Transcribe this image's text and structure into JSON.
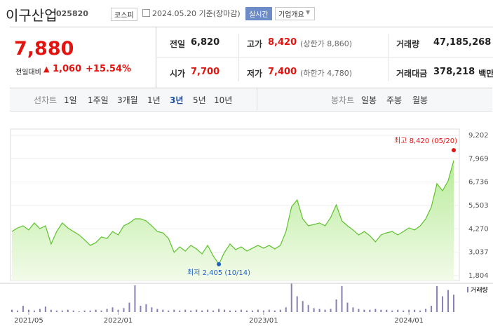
{
  "header": {
    "name": "이구산업",
    "code": "025820",
    "market": "코스피",
    "date": "2024.05.20 기준(장마감)",
    "realtime": "실시간",
    "company": "기업개요"
  },
  "quote": {
    "price": "7,880",
    "change_label": "전일대비",
    "change": "1,060",
    "rate": "+15.54%"
  },
  "stats": [
    {
      "label": "전일",
      "value": "6,820"
    },
    {
      "label": "고가",
      "value": "8,420",
      "note": "(상한가 8,860)"
    },
    {
      "label": "거래량",
      "value": "47,185,268"
    },
    {
      "label": "시가",
      "value": "7,700"
    },
    {
      "label": "저가",
      "value": "7,400",
      "note": "(하한가 4,780)"
    },
    {
      "label": "거래대금",
      "value": "378,218",
      "unit": "백만"
    }
  ],
  "tabs": {
    "line_label": "선차트",
    "line_tabs": [
      "1일",
      "1주일",
      "3개월",
      "1년",
      "3년",
      "5년",
      "10년"
    ],
    "selected_index": 4,
    "candle_label": "봉차트",
    "candle_tabs": [
      "일봉",
      "주봉",
      "월봉"
    ]
  },
  "chart_data": {
    "type": "line",
    "categories": [
      null,
      null,
      null,
      "2021/05",
      null,
      null,
      null,
      null,
      null,
      null,
      null,
      null,
      null,
      null,
      null,
      null,
      null,
      null,
      null,
      "2022/01",
      null,
      null,
      null,
      null,
      null,
      null,
      null,
      null,
      null,
      null,
      null,
      null,
      null,
      null,
      null,
      null,
      null,
      null,
      null,
      null,
      null,
      null,
      null,
      null,
      null,
      "2023/01",
      null,
      null,
      null,
      null,
      null,
      null,
      null,
      null,
      null,
      null,
      null,
      null,
      null,
      null,
      null,
      null,
      null,
      null,
      null,
      null,
      null,
      null,
      null,
      null,
      null,
      "2024/01",
      null,
      null,
      null,
      null,
      null,
      null,
      null,
      null
    ],
    "series": [
      {
        "name": "주가",
        "color": "#5cc22c",
        "values": [
          4130,
          4320,
          4430,
          4210,
          4580,
          4280,
          4430,
          3470,
          4130,
          4580,
          4320,
          4130,
          3950,
          3690,
          3400,
          3540,
          3840,
          3760,
          4130,
          3950,
          4430,
          4580,
          4800,
          4800,
          4690,
          4430,
          4130,
          4060,
          3760,
          3030,
          3320,
          3100,
          3400,
          3210,
          2950,
          3400,
          2840,
          2405,
          3030,
          3470,
          3170,
          3320,
          3100,
          3250,
          3400,
          3250,
          3400,
          3210,
          3400,
          4130,
          5430,
          5800,
          4800,
          4430,
          4500,
          4580,
          4430,
          4870,
          5540,
          4690,
          4430,
          4210,
          3950,
          4130,
          3910,
          3580,
          3950,
          4060,
          4130,
          3950,
          4130,
          4320,
          4210,
          4430,
          4800,
          5430,
          6650,
          6280,
          6800,
          7880
        ]
      },
      {
        "name": "거래량",
        "color": "#8a7fb5",
        "axis": "y2",
        "values": [
          3,
          2,
          8,
          3,
          2,
          4,
          7,
          3,
          2,
          2,
          3,
          2,
          1,
          2,
          2,
          3,
          2,
          4,
          6,
          3,
          5,
          12,
          34,
          8,
          10,
          6,
          4,
          3,
          2,
          3,
          2,
          3,
          2,
          3,
          2,
          3,
          2,
          4,
          3,
          2,
          2,
          3,
          2,
          2,
          3,
          2,
          3,
          2,
          3,
          6,
          36,
          20,
          14,
          9,
          5,
          4,
          3,
          4,
          16,
          33,
          12,
          6,
          4,
          3,
          3,
          4,
          3,
          3,
          2,
          3,
          2,
          3,
          3,
          2,
          4,
          8,
          33,
          20,
          28,
          22
        ]
      }
    ],
    "ylim": [
      1804,
      9202
    ],
    "yticks": [
      {
        "value": 1804,
        "label": "1,804"
      },
      {
        "value": 3037,
        "label": "3,037"
      },
      {
        "value": 4270,
        "label": "4,270"
      },
      {
        "value": 5503,
        "label": "5,503"
      },
      {
        "value": 6736,
        "label": "6,736"
      },
      {
        "value": 7969,
        "label": "7,969"
      },
      {
        "value": 9202,
        "label": "9,202"
      }
    ],
    "y2lim": [
      0,
      40
    ],
    "grid": true,
    "annotations": [
      {
        "label": "최고 8,420 (05/20)",
        "value": 8420,
        "index": 79,
        "color": "#e3140f"
      },
      {
        "label": "최저 2,405 (10/14)",
        "value": 2405,
        "index": 37,
        "color": "#1f62c4"
      }
    ]
  }
}
